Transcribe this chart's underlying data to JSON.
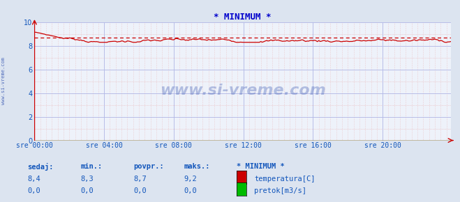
{
  "title": "* MINIMUM *",
  "title_color": "#0000cc",
  "bg_color": "#dce4f0",
  "plot_bg_color": "#eef2fa",
  "grid_color_major": "#b0b8e8",
  "grid_color_minor": "#e8b0b0",
  "x_labels": [
    "sre 00:00",
    "sre 04:00",
    "sre 08:00",
    "sre 12:00",
    "sre 16:00",
    "sre 20:00"
  ],
  "x_ticks_pos": [
    0,
    48,
    96,
    144,
    192,
    240
  ],
  "x_max": 287,
  "y_min": 0,
  "y_max": 10,
  "y_ticks": [
    0,
    2,
    4,
    6,
    8,
    10
  ],
  "temp_color": "#cc0000",
  "flow_color": "#00bb00",
  "avg_value": 8.7,
  "watermark": "www.si-vreme.com",
  "watermark_color": "#2244aa",
  "side_label": "www.si-vreme.com",
  "legend_title": "* MINIMUM *",
  "legend_labels": [
    "temperatura[C]",
    "pretok[m3/s]"
  ],
  "legend_colors": [
    "#cc0000",
    "#00bb00"
  ],
  "table_headers": [
    "sedaj:",
    "min.:",
    "povpr.:",
    "maks.:"
  ],
  "table_temp": [
    "8,4",
    "8,3",
    "8,7",
    "9,2"
  ],
  "table_flow": [
    "0,0",
    "0,0",
    "0,0",
    "0,0"
  ],
  "label_color": "#1155bb"
}
